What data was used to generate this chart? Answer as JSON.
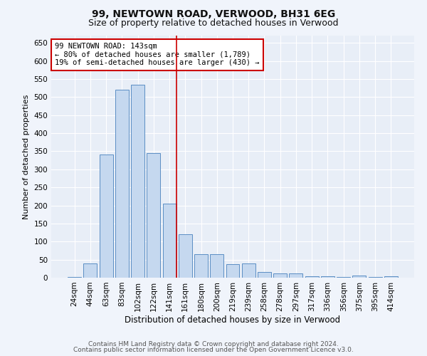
{
  "title1": "99, NEWTOWN ROAD, VERWOOD, BH31 6EG",
  "title2": "Size of property relative to detached houses in Verwood",
  "xlabel": "Distribution of detached houses by size in Verwood",
  "ylabel": "Number of detached properties",
  "categories": [
    "24sqm",
    "44sqm",
    "63sqm",
    "83sqm",
    "102sqm",
    "122sqm",
    "141sqm",
    "161sqm",
    "180sqm",
    "200sqm",
    "219sqm",
    "239sqm",
    "258sqm",
    "278sqm",
    "297sqm",
    "317sqm",
    "336sqm",
    "356sqm",
    "375sqm",
    "395sqm",
    "414sqm"
  ],
  "values": [
    2,
    40,
    340,
    520,
    535,
    345,
    205,
    120,
    65,
    65,
    38,
    40,
    15,
    12,
    11,
    3,
    3,
    1,
    5,
    1,
    4
  ],
  "bar_color": "#c5d8ef",
  "bar_edge_color": "#5b8ec4",
  "background_color": "#e8eef7",
  "grid_color": "#ffffff",
  "fig_background": "#f0f4fb",
  "vline_x": 6.43,
  "vline_color": "#cc0000",
  "annotation_text": "99 NEWTOWN ROAD: 143sqm\n← 80% of detached houses are smaller (1,789)\n19% of semi-detached houses are larger (430) →",
  "annotation_box_color": "#ffffff",
  "annotation_box_edge_color": "#cc0000",
  "ylim": [
    0,
    670
  ],
  "yticks": [
    0,
    50,
    100,
    150,
    200,
    250,
    300,
    350,
    400,
    450,
    500,
    550,
    600,
    650
  ],
  "footer1": "Contains HM Land Registry data © Crown copyright and database right 2024.",
  "footer2": "Contains public sector information licensed under the Open Government Licence v3.0.",
  "title1_fontsize": 10,
  "title2_fontsize": 9,
  "xlabel_fontsize": 8.5,
  "ylabel_fontsize": 8,
  "tick_fontsize": 7.5,
  "annotation_fontsize": 7.5,
  "footer_fontsize": 6.5
}
